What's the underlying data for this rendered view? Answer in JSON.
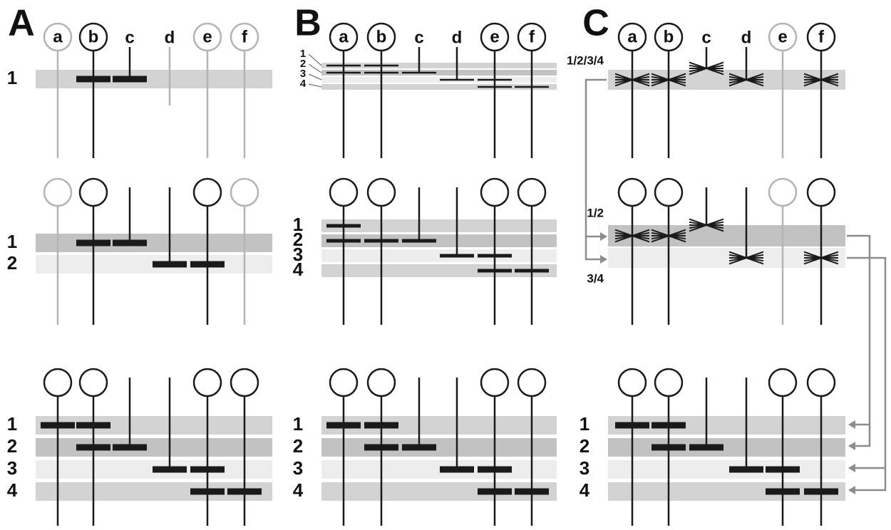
{
  "figure": {
    "colors": {
      "band_dark": "#c2c2c2",
      "band_mid": "#d3d3d3",
      "band_light": "#ededed",
      "stem_active": "#1a1a1a",
      "stem_inactive": "#b4b4b4",
      "bar": "#1a1a1a",
      "arrow": "#8c8c8c"
    },
    "panels": [
      {
        "id": "A",
        "label": "A",
        "cols": [
          "a",
          "b",
          "c",
          "d",
          "e",
          "f"
        ],
        "rows": [
          {
            "circles": [
              {
                "col": "a",
                "label": "a",
                "active": false
              },
              {
                "col": "b",
                "label": "b",
                "active": true
              },
              {
                "col": "e",
                "label": "e",
                "active": false
              },
              {
                "col": "f",
                "label": "f",
                "active": false
              }
            ],
            "col_text": [
              {
                "col": "c",
                "label": "c"
              },
              {
                "col": "d",
                "label": "d"
              }
            ],
            "bands": [
              {
                "label": "1",
                "tone": "mid"
              }
            ],
            "segments": [
              {
                "col": "b",
                "band": 0
              },
              {
                "col": "c",
                "band": 0
              }
            ],
            "inactive_stems": [
              "a",
              "d",
              "e",
              "f"
            ]
          },
          {
            "circles": [
              {
                "col": "a",
                "label": "",
                "active": false
              },
              {
                "col": "b",
                "label": "",
                "active": true
              },
              {
                "col": "e",
                "label": "",
                "active": true
              },
              {
                "col": "f",
                "label": "",
                "active": false
              }
            ],
            "col_text": [],
            "bands": [
              {
                "label": "1",
                "tone": "dark"
              },
              {
                "label": "2",
                "tone": "light"
              }
            ],
            "segments": [
              {
                "col": "b",
                "band": 0
              },
              {
                "col": "c",
                "band": 0
              },
              {
                "col": "d",
                "band": 1
              },
              {
                "col": "e",
                "band": 1
              }
            ],
            "inactive_stems": [
              "a",
              "f"
            ]
          },
          {
            "circles": [
              {
                "col": "a",
                "label": "",
                "active": true
              },
              {
                "col": "b",
                "label": "",
                "active": true
              },
              {
                "col": "e",
                "label": "",
                "active": true
              },
              {
                "col": "f",
                "label": "",
                "active": true
              }
            ],
            "col_text": [],
            "bands": [
              {
                "label": "1",
                "tone": "mid"
              },
              {
                "label": "2",
                "tone": "dark"
              },
              {
                "label": "3",
                "tone": "light"
              },
              {
                "label": "4",
                "tone": "mid"
              }
            ],
            "segments": [
              {
                "col": "a",
                "band": 0
              },
              {
                "col": "b",
                "band": 0
              },
              {
                "col": "b",
                "band": 1
              },
              {
                "col": "c",
                "band": 1
              },
              {
                "col": "d",
                "band": 2
              },
              {
                "col": "e",
                "band": 2
              },
              {
                "col": "e",
                "band": 3
              },
              {
                "col": "f",
                "band": 3
              }
            ],
            "inactive_stems": []
          }
        ]
      },
      {
        "id": "B",
        "label": "B",
        "cols": [
          "a",
          "b",
          "c",
          "d",
          "e",
          "f"
        ],
        "rows": [
          {
            "circles": [
              {
                "col": "a",
                "label": "a",
                "active": true
              },
              {
                "col": "b",
                "label": "b",
                "active": true
              },
              {
                "col": "e",
                "label": "e",
                "active": true
              },
              {
                "col": "f",
                "label": "f",
                "active": true
              }
            ],
            "col_text": [
              {
                "col": "c",
                "label": "c"
              },
              {
                "col": "d",
                "label": "d"
              }
            ],
            "bands": [
              {
                "label": "1",
                "tone": "mid"
              },
              {
                "label": "2",
                "tone": "dark"
              },
              {
                "label": "3",
                "tone": "light"
              },
              {
                "label": "4",
                "tone": "mid"
              }
            ],
            "segments": [
              {
                "col": "a",
                "band": 0
              },
              {
                "col": "b",
                "band": 0
              },
              {
                "col": "a",
                "band": 1
              },
              {
                "col": "b",
                "band": 1
              },
              {
                "col": "c",
                "band": 1
              },
              {
                "col": "d",
                "band": 2
              },
              {
                "col": "e",
                "band": 2
              },
              {
                "col": "e",
                "band": 3
              },
              {
                "col": "f",
                "band": 3
              }
            ],
            "inactive_stems": []
          },
          {
            "circles": [
              {
                "col": "a",
                "label": "",
                "active": true
              },
              {
                "col": "b",
                "label": "",
                "active": true
              },
              {
                "col": "e",
                "label": "",
                "active": true
              },
              {
                "col": "f",
                "label": "",
                "active": true
              }
            ],
            "col_text": [],
            "bands": [
              {
                "label": "1",
                "tone": "mid"
              },
              {
                "label": "2",
                "tone": "dark"
              },
              {
                "label": "3",
                "tone": "light"
              },
              {
                "label": "4",
                "tone": "mid"
              }
            ],
            "segments": [
              {
                "col": "a",
                "band": 0
              },
              {
                "col": "a",
                "band": 1
              },
              {
                "col": "b",
                "band": 1
              },
              {
                "col": "c",
                "band": 1
              },
              {
                "col": "d",
                "band": 2
              },
              {
                "col": "e",
                "band": 2
              },
              {
                "col": "e",
                "band": 3
              },
              {
                "col": "f",
                "band": 3
              }
            ],
            "inactive_stems": []
          },
          {
            "circles": [
              {
                "col": "a",
                "label": "",
                "active": true
              },
              {
                "col": "b",
                "label": "",
                "active": true
              },
              {
                "col": "e",
                "label": "",
                "active": true
              },
              {
                "col": "f",
                "label": "",
                "active": true
              }
            ],
            "col_text": [],
            "bands": [
              {
                "label": "1",
                "tone": "mid"
              },
              {
                "label": "2",
                "tone": "dark"
              },
              {
                "label": "3",
                "tone": "light"
              },
              {
                "label": "4",
                "tone": "mid"
              }
            ],
            "segments": [
              {
                "col": "a",
                "band": 0
              },
              {
                "col": "b",
                "band": 0
              },
              {
                "col": "b",
                "band": 1
              },
              {
                "col": "c",
                "band": 1
              },
              {
                "col": "d",
                "band": 2
              },
              {
                "col": "e",
                "band": 2
              },
              {
                "col": "e",
                "band": 3
              },
              {
                "col": "f",
                "band": 3
              }
            ],
            "inactive_stems": []
          }
        ]
      },
      {
        "id": "C",
        "label": "C",
        "cols": [
          "a",
          "b",
          "c",
          "d",
          "e",
          "f"
        ],
        "rows": [
          {
            "circles": [
              {
                "col": "a",
                "label": "a",
                "active": true
              },
              {
                "col": "b",
                "label": "b",
                "active": true
              },
              {
                "col": "e",
                "label": "e",
                "active": false
              },
              {
                "col": "f",
                "label": "f",
                "active": true
              }
            ],
            "col_text": [
              {
                "col": "c",
                "label": "c"
              },
              {
                "col": "d",
                "label": "d"
              }
            ],
            "band_groups": [
              {
                "label": "1/2/3/4",
                "tone": "mid"
              }
            ],
            "fans": [
              {
                "col": "a",
                "group": 0,
                "dir": "both"
              },
              {
                "col": "b",
                "group": 0,
                "dir": "both"
              },
              {
                "col": "c",
                "group": 0,
                "dir": "both",
                "above": true
              },
              {
                "col": "d",
                "group": 0,
                "dir": "both"
              },
              {
                "col": "f",
                "group": 0,
                "dir": "both"
              }
            ],
            "inactive_stems": [
              "e"
            ]
          },
          {
            "circles": [
              {
                "col": "a",
                "label": "",
                "active": true
              },
              {
                "col": "b",
                "label": "",
                "active": true
              },
              {
                "col": "e",
                "label": "",
                "active": false
              },
              {
                "col": "f",
                "label": "",
                "active": true
              }
            ],
            "col_text": [],
            "band_groups": [
              {
                "label": "1/2",
                "tone": "dark"
              },
              {
                "label": "3/4",
                "tone": "light"
              }
            ],
            "fans": [
              {
                "col": "a",
                "group": 0,
                "dir": "both"
              },
              {
                "col": "b",
                "group": 0,
                "dir": "both"
              },
              {
                "col": "c",
                "group": 0,
                "dir": "both",
                "above": true
              },
              {
                "col": "d",
                "group": 1,
                "dir": "both"
              },
              {
                "col": "f",
                "group": 1,
                "dir": "both"
              }
            ],
            "inactive_stems": [
              "e"
            ]
          },
          {
            "circles": [
              {
                "col": "a",
                "label": "",
                "active": true
              },
              {
                "col": "b",
                "label": "",
                "active": true
              },
              {
                "col": "e",
                "label": "",
                "active": true
              },
              {
                "col": "f",
                "label": "",
                "active": true
              }
            ],
            "col_text": [],
            "bands": [
              {
                "label": "1",
                "tone": "mid"
              },
              {
                "label": "2",
                "tone": "dark"
              },
              {
                "label": "3",
                "tone": "light"
              },
              {
                "label": "4",
                "tone": "mid"
              }
            ],
            "segments": [
              {
                "col": "a",
                "band": 0
              },
              {
                "col": "b",
                "band": 0
              },
              {
                "col": "b",
                "band": 1
              },
              {
                "col": "c",
                "band": 1
              },
              {
                "col": "d",
                "band": 2
              },
              {
                "col": "e",
                "band": 2
              },
              {
                "col": "e",
                "band": 3
              },
              {
                "col": "f",
                "band": 3
              }
            ],
            "inactive_stems": []
          }
        ]
      }
    ]
  }
}
